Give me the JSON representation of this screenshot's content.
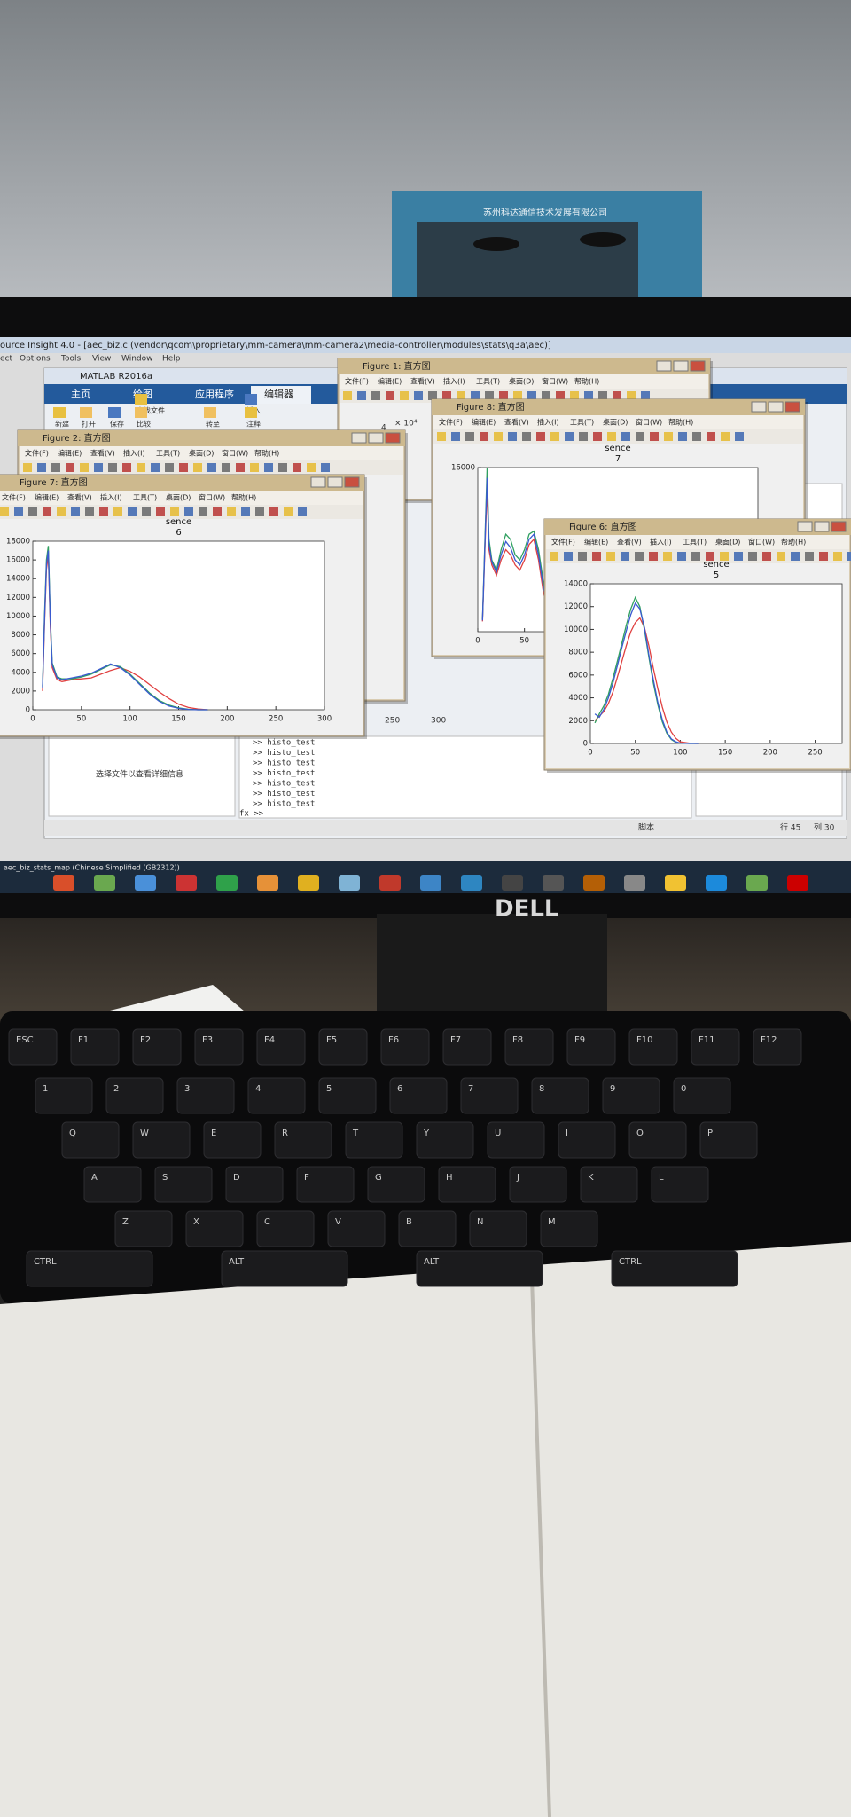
{
  "rack_sign": "苏州科达通信技术发展有限公司",
  "source_insight": {
    "title": "ource Insight 4.0 - [aec_biz.c (vendor\\qcom\\proprietary\\mm-camera\\mm-camera2\\media-controller\\modules\\stats\\q3a\\aec)]",
    "menu": [
      "ect",
      "Options",
      "Tools",
      "View",
      "Window",
      "Help"
    ]
  },
  "matlab": {
    "title": "MATLAB R2016a",
    "tabs": [
      "主页",
      "绘图",
      "应用程序",
      "编辑器"
    ],
    "toolbar": [
      "新建",
      "打开",
      "保存",
      "查找文件",
      "比较",
      "插入",
      "注释",
      "转至"
    ],
    "file_hint": "选择文件以查看详细信息",
    "commands": [
      ">> histo_test",
      ">> histo_test",
      ">> histo_test",
      ">> histo_test",
      ">> histo_test",
      ">> histo_test",
      ">> histo_test"
    ],
    "prompt": "fx >>",
    "status": [
      "脚本",
      "行 45",
      "列 30"
    ]
  },
  "figure_menu": [
    "文件(F)",
    "编辑(E)",
    "查看(V)",
    "插入(I)",
    "工具(T)",
    "桌面(D)",
    "窗口(W)",
    "帮助(H)"
  ],
  "windows": [
    {
      "title": "Figure 1: 直方图",
      "texts": [
        "4",
        "× 10⁴"
      ]
    },
    {
      "title": "Figure 8: 直方图"
    },
    {
      "title": "Figure 2: 直方图",
      "texts": [
        "250",
        "300"
      ]
    },
    {
      "title": "Figure 7: 直方图"
    },
    {
      "title": "Figure 6: 直方图"
    }
  ],
  "taskbar": {
    "label": "aec_biz_stats_map (Chinese Simplified (GB2312))"
  },
  "brand": "DELL",
  "keyboard": {
    "rows": [
      [
        "ESC",
        "F1",
        "F2",
        "F3",
        "F4",
        "F5",
        "F6",
        "F7",
        "F8",
        "F9",
        "F10",
        "F11",
        "F12"
      ],
      [
        "1",
        "2",
        "3",
        "4",
        "5",
        "6",
        "7",
        "8",
        "9",
        "0"
      ],
      [
        "Q",
        "W",
        "E",
        "R",
        "T",
        "Y",
        "U",
        "I",
        "O",
        "P"
      ],
      [
        "A",
        "S",
        "D",
        "F",
        "G",
        "H",
        "J",
        "K",
        "L"
      ],
      [
        "Z",
        "X",
        "C",
        "V",
        "B",
        "N",
        "M"
      ],
      [
        "CTRL",
        "ALT",
        "ALT",
        "CTRL"
      ]
    ]
  },
  "chart_data": [
    {
      "type": "line",
      "title": "sence",
      "subtitle": "6",
      "x": [
        10,
        12,
        14,
        16,
        18,
        20,
        25,
        30,
        40,
        50,
        60,
        70,
        80,
        90,
        100,
        110,
        120,
        130,
        140,
        150,
        160,
        170,
        180
      ],
      "series": [
        {
          "name": "R",
          "color": "#e04040",
          "values": [
            2000,
            9000,
            15000,
            16500,
            9000,
            4500,
            3200,
            3000,
            3200,
            3300,
            3400,
            3800,
            4200,
            4500,
            4100,
            3500,
            2700,
            1900,
            1200,
            600,
            250,
            80,
            0
          ]
        },
        {
          "name": "G",
          "color": "#30a060",
          "values": [
            2500,
            10000,
            16000,
            17500,
            10000,
            5000,
            3500,
            3300,
            3300,
            3500,
            3800,
            4300,
            4800,
            4600,
            3800,
            2800,
            1800,
            1000,
            500,
            200,
            60,
            0,
            0
          ]
        },
        {
          "name": "B",
          "color": "#3a5ad0",
          "values": [
            2300,
            9500,
            15500,
            17000,
            9500,
            4800,
            3400,
            3200,
            3400,
            3600,
            3900,
            4400,
            4900,
            4500,
            3700,
            2700,
            1700,
            900,
            400,
            150,
            40,
            0,
            0
          ]
        }
      ],
      "xlim": [
        0,
        300
      ],
      "xticks": [
        0,
        50,
        100,
        150,
        200,
        250,
        300
      ],
      "ylim": [
        0,
        18000
      ],
      "yticks": [
        0,
        2000,
        4000,
        6000,
        8000,
        10000,
        12000,
        14000,
        16000,
        18000
      ]
    },
    {
      "type": "line",
      "title": "sence",
      "subtitle": "5",
      "x": [
        5,
        10,
        15,
        20,
        25,
        30,
        35,
        40,
        45,
        50,
        55,
        60,
        65,
        70,
        75,
        80,
        85,
        90,
        95,
        100,
        110,
        120
      ],
      "series": [
        {
          "name": "R",
          "color": "#e04040",
          "values": [
            2000,
            2400,
            2800,
            3500,
            4500,
            5800,
            7200,
            8600,
            9800,
            10600,
            11000,
            10200,
            8600,
            6600,
            4800,
            3200,
            1900,
            1000,
            450,
            150,
            20,
            0
          ]
        },
        {
          "name": "G",
          "color": "#30a060",
          "values": [
            1800,
            2600,
            3300,
            4300,
            5700,
            7200,
            8800,
            10400,
            11800,
            12800,
            12000,
            10000,
            7600,
            5300,
            3400,
            1900,
            900,
            350,
            100,
            20,
            0,
            0
          ]
        },
        {
          "name": "B",
          "color": "#3a5ad0",
          "values": [
            2600,
            2300,
            3000,
            4000,
            5300,
            6800,
            8400,
            9900,
            11300,
            12300,
            11800,
            10200,
            7800,
            5600,
            3600,
            2100,
            1000,
            400,
            150,
            30,
            0,
            0
          ]
        }
      ],
      "xlim": [
        0,
        280
      ],
      "xticks": [
        0,
        50,
        100,
        150,
        200,
        250
      ],
      "ylim": [
        0,
        14000
      ],
      "yticks": [
        0,
        2000,
        4000,
        6000,
        8000,
        10000,
        12000,
        14000
      ]
    },
    {
      "type": "line",
      "title": "sence",
      "subtitle": "7",
      "x": [
        5,
        8,
        10,
        12,
        15,
        20,
        25,
        30,
        35,
        40,
        45,
        50,
        55,
        60,
        65,
        70,
        75
      ],
      "series": [
        {
          "name": "R",
          "color": "#e04040",
          "values": [
            1000,
            9000,
            14000,
            8000,
            6500,
            5500,
            7000,
            8000,
            7500,
            6500,
            6000,
            7000,
            8500,
            9000,
            7000,
            4000,
            2000
          ]
        },
        {
          "name": "G",
          "color": "#30a060",
          "values": [
            1200,
            10000,
            16000,
            9000,
            7000,
            6000,
            8000,
            9500,
            9000,
            7500,
            7000,
            8000,
            9500,
            9800,
            8000,
            5000,
            2500
          ]
        },
        {
          "name": "B",
          "color": "#3a5ad0",
          "values": [
            1100,
            9500,
            15000,
            8500,
            6800,
            5800,
            7500,
            8800,
            8200,
            7000,
            6500,
            7500,
            9000,
            9500,
            7500,
            4500,
            2200
          ]
        }
      ],
      "xlim": [
        0,
        300
      ],
      "xticks": [
        0,
        50
      ],
      "ylim": [
        0,
        16000
      ],
      "yticks": [
        16000
      ]
    }
  ]
}
